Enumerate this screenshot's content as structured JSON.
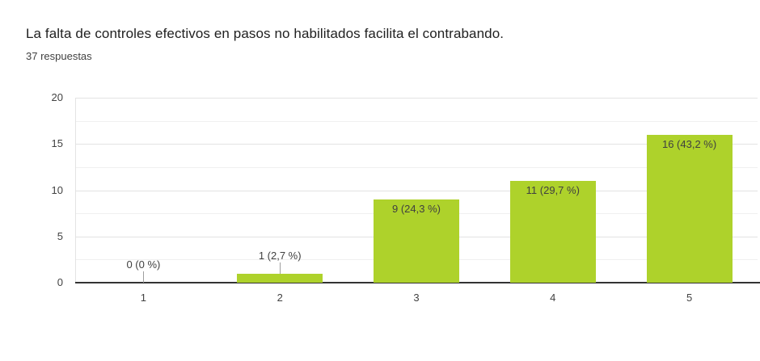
{
  "header": {
    "title": "La falta de controles efectivos en pasos no habilitados facilita el contrabando.",
    "subtitle": "37 respuestas"
  },
  "chart_data": {
    "type": "bar",
    "title": "La falta de controles efectivos en pasos no habilitados facilita el contrabando.",
    "subtitle": "37 respuestas",
    "categories": [
      "1",
      "2",
      "3",
      "4",
      "5"
    ],
    "values": [
      0,
      1,
      9,
      11,
      16
    ],
    "bar_labels": [
      "0 (0 %)",
      "1 (2,7 %)",
      "9 (24,3 %)",
      "11 (29,7 %)",
      "16 (43,2 %)"
    ],
    "xlabel": "",
    "ylabel": "",
    "ylim": [
      0,
      20
    ],
    "y_ticks": [
      "0",
      "5",
      "10",
      "15",
      "20"
    ],
    "y_major_step": 5,
    "y_minor_step": 2.5,
    "grid": true,
    "legend": "none",
    "colors": {
      "bar": "#aed22b",
      "bar_label": "#404040",
      "axis_text": "#424242",
      "grid_major": "#e3e3e3",
      "grid_minor": "#f0f0f0",
      "baseline": "#333333",
      "stub": "#9e9e9e",
      "title": "#212121",
      "subtitle": "#424242"
    }
  }
}
